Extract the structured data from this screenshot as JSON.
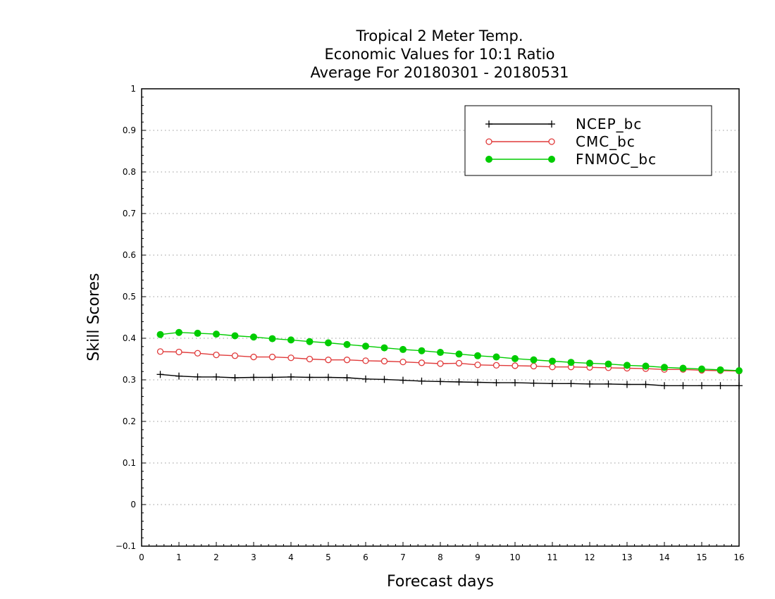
{
  "chart_data": {
    "type": "line",
    "title": [
      "Tropical 2 Meter Temp.",
      "Economic Values for 10:1 Ratio",
      "Average For 20180301 - 20180531"
    ],
    "xlabel": "Forecast days",
    "ylabel": "Skill Scores",
    "xlim": [
      0,
      16
    ],
    "ylim": [
      -0.1,
      1
    ],
    "xticks": [
      "0",
      "1",
      "2",
      "3",
      "4",
      "5",
      "6",
      "7",
      "8",
      "9",
      "10",
      "11",
      "12",
      "13",
      "14",
      "15",
      "16"
    ],
    "yticks": [
      "−0.1",
      "0",
      "0.1",
      "0.2",
      "0.3",
      "0.4",
      "0.5",
      "0.6",
      "0.7",
      "0.8",
      "0.9",
      "1"
    ],
    "grid": "horizontal-dotted",
    "legend_position": "top-right",
    "x": [
      0.5,
      1,
      1.5,
      2,
      2.5,
      3,
      3.5,
      4,
      4.5,
      5,
      5.5,
      6,
      6.5,
      7,
      7.5,
      8,
      8.5,
      9,
      9.5,
      10,
      10.5,
      11,
      11.5,
      12,
      12.5,
      13,
      13.5,
      14,
      14.5,
      15,
      15.5,
      16
    ],
    "series": [
      {
        "name": "NCEP_bc",
        "color": "#000000",
        "marker": "plus",
        "values": [
          0.313,
          0.309,
          0.307,
          0.307,
          0.305,
          0.306,
          0.306,
          0.307,
          0.306,
          0.306,
          0.305,
          0.302,
          0.301,
          0.299,
          0.297,
          0.296,
          0.295,
          0.294,
          0.293,
          0.293,
          0.292,
          0.291,
          0.291,
          0.29,
          0.29,
          0.289,
          0.289,
          0.286,
          0.286,
          0.286,
          0.286,
          0.286
        ]
      },
      {
        "name": "CMC_bc",
        "color": "#e03a3a",
        "marker": "open-circle",
        "values": [
          0.368,
          0.367,
          0.364,
          0.36,
          0.358,
          0.355,
          0.355,
          0.353,
          0.35,
          0.348,
          0.348,
          0.346,
          0.345,
          0.343,
          0.341,
          0.339,
          0.34,
          0.336,
          0.335,
          0.334,
          0.333,
          0.331,
          0.331,
          0.33,
          0.329,
          0.328,
          0.327,
          0.325,
          0.325,
          0.323,
          0.322,
          0.321
        ]
      },
      {
        "name": "FNMOC_bc",
        "color": "#00cc00",
        "marker": "filled-circle",
        "values": [
          0.409,
          0.414,
          0.412,
          0.41,
          0.406,
          0.403,
          0.399,
          0.396,
          0.392,
          0.389,
          0.385,
          0.381,
          0.377,
          0.373,
          0.37,
          0.366,
          0.362,
          0.358,
          0.355,
          0.351,
          0.348,
          0.345,
          0.342,
          0.34,
          0.338,
          0.335,
          0.333,
          0.33,
          0.328,
          0.326,
          0.324,
          0.322
        ]
      }
    ]
  }
}
